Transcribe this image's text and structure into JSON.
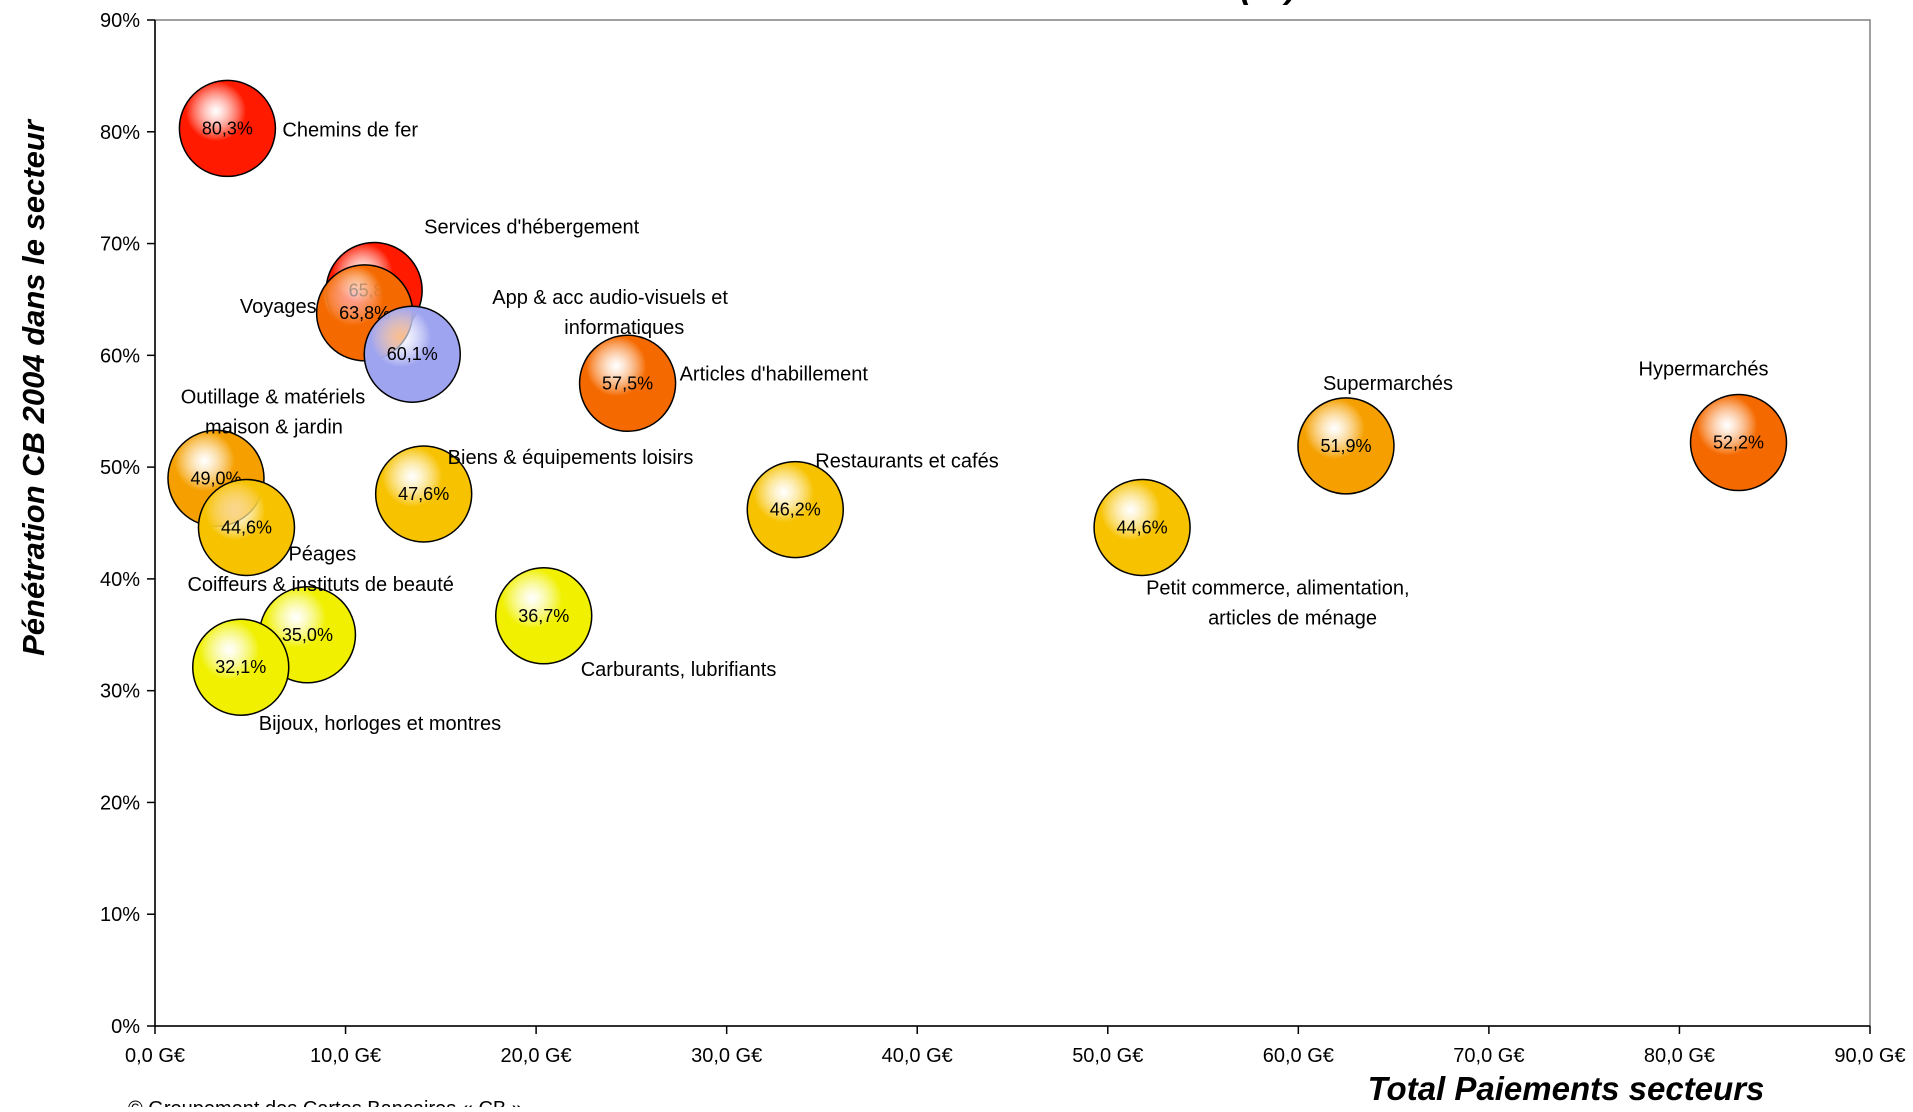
{
  "footer": "© Groupement des Cartes Bancaires « CB »",
  "colors": {
    "red": "#ff1a00",
    "orange": "#f56a00",
    "orange_gold": "#f5a000",
    "gold": "#f7c200",
    "yellow": "#f0f000",
    "lavender": "#9fa4f0"
  },
  "chart_data": {
    "type": "bubble",
    "title": "(…)",
    "xlabel": "Total Paiements secteurs",
    "ylabel": "Pénétration CB 2004 dans le secteur",
    "xlim": [
      0,
      90
    ],
    "ylim": [
      0,
      90
    ],
    "grid": false,
    "x_tick_labels": [
      "0,0 G€",
      "10,0 G€",
      "20,0 G€",
      "30,0 G€",
      "40,0 G€",
      "50,0 G€",
      "60,0 G€",
      "70,0 G€",
      "80,0 G€",
      "90,0 G€"
    ],
    "y_tick_labels": [
      "0%",
      "10%",
      "20%",
      "30%",
      "40%",
      "50%",
      "60%",
      "70%",
      "80%",
      "90%"
    ],
    "points": [
      {
        "name": "Chemins de fer",
        "x": 3.8,
        "y": 80.3,
        "value_label": "80,3%",
        "color": "red"
      },
      {
        "name": "Services d'hébergement",
        "x": 11.5,
        "y": 65.8,
        "value_label": "65,8%",
        "color": "red"
      },
      {
        "name": "Voyages",
        "x": 11.0,
        "y": 63.8,
        "value_label": "63,8%",
        "color": "orange"
      },
      {
        "name": "App & acc audio-visuels et informatiques",
        "x": 13.5,
        "y": 60.1,
        "value_label": "60,1%",
        "color": "lavender"
      },
      {
        "name": "Articles d'habillement",
        "x": 24.8,
        "y": 57.5,
        "value_label": "57,5%",
        "color": "orange"
      },
      {
        "name": "Outillage & matériels maison & jardin",
        "x": 3.2,
        "y": 49.0,
        "value_label": "49,0%",
        "color": "orange_gold"
      },
      {
        "name": "Péages",
        "x": 4.8,
        "y": 44.6,
        "value_label": "44,6%",
        "color": "gold"
      },
      {
        "name": "Biens & équipements loisirs",
        "x": 14.1,
        "y": 47.6,
        "value_label": "47,6%",
        "color": "gold"
      },
      {
        "name": "Restaurants et cafés",
        "x": 33.6,
        "y": 46.2,
        "value_label": "46,2%",
        "color": "gold"
      },
      {
        "name": "Petit commerce, alimentation, articles de ménage",
        "x": 51.8,
        "y": 44.6,
        "value_label": "44,6%",
        "color": "gold"
      },
      {
        "name": "Supermarchés",
        "x": 62.5,
        "y": 51.9,
        "value_label": "51,9%",
        "color": "orange_gold"
      },
      {
        "name": "Hypermarchés",
        "x": 83.1,
        "y": 52.2,
        "value_label": "52,2%",
        "color": "orange"
      },
      {
        "name": "Coiffeurs & instituts de beauté",
        "x": 8.0,
        "y": 35.0,
        "value_label": "35,0%",
        "color": "yellow"
      },
      {
        "name": "Carburants, lubrifiants",
        "x": 20.4,
        "y": 36.7,
        "value_label": "36,7%",
        "color": "yellow"
      },
      {
        "name": "Bijoux, horloges et montres",
        "x": 4.5,
        "y": 32.1,
        "value_label": "32,1%",
        "color": "yellow"
      }
    ]
  }
}
